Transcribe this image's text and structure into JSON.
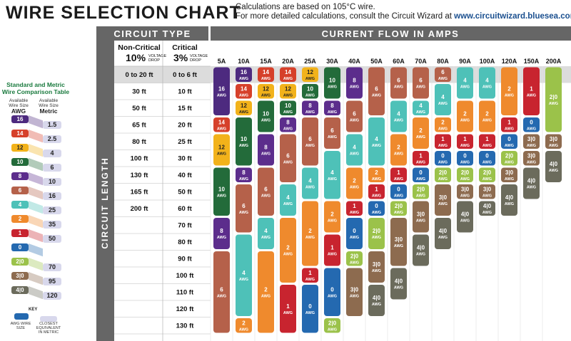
{
  "header": {
    "title": "WIRE SELECTION CHART",
    "sub1": "Calculations are based on 105°C wire.",
    "sub2_prefix": "For more detailed calculations, consult the Circuit Wizard at ",
    "sub2_url": "www.circuitwizard.bluesea.com"
  },
  "side": {
    "title1": "Standard and Metric",
    "title2": "Wire Comparison Table",
    "col1a": "Available",
    "col1b": "Wire Size",
    "col1c": "AWG",
    "col2a": "Available",
    "col2b": "Wire Size",
    "col2c": "Metric",
    "rows": [
      {
        "awg": "16",
        "metric": "1.5"
      },
      {
        "awg": "14",
        "metric": "2.5"
      },
      {
        "awg": "12",
        "metric": "4"
      },
      {
        "awg": "10",
        "metric": "6"
      },
      {
        "awg": "8",
        "metric": "10"
      },
      {
        "awg": "6",
        "metric": "16"
      },
      {
        "awg": "4",
        "metric": "25"
      },
      {
        "awg": "2",
        "metric": "35"
      },
      {
        "awg": "1",
        "metric": "50"
      },
      {
        "awg": "0",
        "metric": ""
      },
      {
        "awg": "2|0",
        "metric": "70"
      },
      {
        "awg": "3|0",
        "metric": "95"
      },
      {
        "awg": "4|0",
        "metric": "120"
      }
    ],
    "key_title": "KEY",
    "key_awg": "AWG WIRE SIZE",
    "key_metric": "CLOSEST EQUIVALENT IN METRIC"
  },
  "colors": {
    "16": "#4d2a7f",
    "14": "#d6402a",
    "12": "#f2b21a",
    "10": "#236b3a",
    "8": "#5c2d8c",
    "6": "#b5614a",
    "4": "#4ec1b8",
    "2": "#ef8a2d",
    "1": "#c8242f",
    "0": "#2469b0",
    "2|0": "#9bc24a",
    "3|0": "#8d6b4f",
    "4|0": "#6b6b5c",
    "header_dark": "#666666",
    "shade": "#f2f2f2"
  },
  "chart_data": {
    "type": "table",
    "circuit_type_label": "CIRCUIT TYPE",
    "current_label": "CURRENT FLOW IN AMPS",
    "circuit_length_label": "CIRCUIT LENGTH",
    "noncritical_label": "Non-Critical",
    "noncritical_pct": "10%",
    "critical_label": "Critical",
    "critical_pct": "3%",
    "voltage_drop": "VOLTAGE DROP",
    "unit_label": "AWG",
    "amps": [
      "5A",
      "10A",
      "15A",
      "20A",
      "25A",
      "30A",
      "40A",
      "50A",
      "60A",
      "70A",
      "80A",
      "90A",
      "100A",
      "120A",
      "150A",
      "200A"
    ],
    "noncritical_lengths": [
      "0 to 20 ft",
      "30 ft",
      "50 ft",
      "65 ft",
      "80 ft",
      "100 ft",
      "130 ft",
      "165 ft",
      "200 ft"
    ],
    "critical_lengths": [
      "0 to 6 ft",
      "10 ft",
      "15 ft",
      "20 ft",
      "25 ft",
      "30 ft",
      "40 ft",
      "50 ft",
      "60 ft",
      "70 ft",
      "80 ft",
      "90 ft",
      "100 ft",
      "110 ft",
      "120 ft",
      "130 ft"
    ],
    "columns": [
      [
        [
          "16",
          0,
          2
        ],
        [
          "14",
          3,
          3
        ],
        [
          "12",
          4,
          5
        ],
        [
          "10",
          6,
          8
        ],
        [
          "8",
          9,
          10
        ],
        [
          "6",
          11,
          15
        ]
      ],
      [
        [
          "16",
          0,
          0
        ],
        [
          "14",
          1,
          1
        ],
        [
          "12",
          2,
          2
        ],
        [
          "10",
          3,
          5
        ],
        [
          "8",
          6,
          6
        ],
        [
          "6",
          7,
          9
        ],
        [
          "4",
          10,
          14
        ],
        [
          "2",
          15,
          15
        ]
      ],
      [
        [
          "14",
          0,
          0
        ],
        [
          "12",
          1,
          1
        ],
        [
          "10",
          2,
          3
        ],
        [
          "8",
          4,
          5
        ],
        [
          "6",
          6,
          8
        ],
        [
          "4",
          9,
          10
        ],
        [
          "2",
          11,
          15
        ]
      ],
      [
        [
          "14",
          0,
          0
        ],
        [
          "12",
          1,
          1
        ],
        [
          "10",
          2,
          2
        ],
        [
          "8",
          3,
          3
        ],
        [
          "6",
          4,
          6
        ],
        [
          "4",
          7,
          8
        ],
        [
          "2",
          9,
          12
        ],
        [
          "1",
          13,
          15
        ]
      ],
      [
        [
          "12",
          0,
          0
        ],
        [
          "10",
          1,
          1
        ],
        [
          "8",
          2,
          2
        ],
        [
          "6",
          3,
          5
        ],
        [
          "4",
          6,
          7
        ],
        [
          "2",
          8,
          11
        ],
        [
          "1",
          12,
          12
        ],
        [
          "0",
          13,
          15
        ]
      ],
      [
        [
          "10",
          0,
          1
        ],
        [
          "8",
          2,
          2
        ],
        [
          "6",
          3,
          4
        ],
        [
          "4",
          5,
          7
        ],
        [
          "2",
          8,
          9
        ],
        [
          "1",
          10,
          11
        ],
        [
          "0",
          12,
          14
        ],
        [
          "2|0",
          15,
          15
        ]
      ],
      [
        [
          "8",
          0,
          1
        ],
        [
          "6",
          2,
          3
        ],
        [
          "4",
          4,
          5
        ],
        [
          "2",
          6,
          7
        ],
        [
          "1",
          8,
          8
        ],
        [
          "0",
          9,
          10
        ],
        [
          "2|0",
          11,
          11
        ],
        [
          "3|0",
          12,
          14
        ]
      ],
      [
        [
          "6",
          0,
          2
        ],
        [
          "4",
          3,
          5
        ],
        [
          "2",
          6,
          6
        ],
        [
          "1",
          7,
          7
        ],
        [
          "0",
          8,
          8
        ],
        [
          "2|0",
          9,
          10
        ],
        [
          "3|0",
          11,
          12
        ],
        [
          "4|0",
          13,
          14
        ]
      ],
      [
        [
          "6",
          0,
          1
        ],
        [
          "4",
          2,
          3
        ],
        [
          "2",
          4,
          5
        ],
        [
          "1",
          6,
          6
        ],
        [
          "0",
          7,
          7
        ],
        [
          "2|0",
          8,
          8
        ],
        [
          "3|0",
          9,
          11
        ],
        [
          "4|0",
          12,
          13
        ]
      ],
      [
        [
          "6",
          0,
          1
        ],
        [
          "4",
          2,
          2
        ],
        [
          "2",
          3,
          4
        ],
        [
          "1",
          5,
          5
        ],
        [
          "0",
          6,
          6
        ],
        [
          "2|0",
          7,
          7
        ],
        [
          "3|0",
          8,
          9
        ],
        [
          "4|0",
          10,
          11
        ]
      ],
      [
        [
          "6",
          0,
          0
        ],
        [
          "4",
          1,
          2
        ],
        [
          "2",
          3,
          3
        ],
        [
          "1",
          4,
          4
        ],
        [
          "0",
          5,
          5
        ],
        [
          "2|0",
          6,
          6
        ],
        [
          "3|0",
          7,
          8
        ],
        [
          "4|0",
          9,
          10
        ]
      ],
      [
        [
          "4",
          0,
          1
        ],
        [
          "2",
          2,
          3
        ],
        [
          "1",
          4,
          4
        ],
        [
          "0",
          5,
          5
        ],
        [
          "2|0",
          6,
          6
        ],
        [
          "3|0",
          7,
          7
        ],
        [
          "4|0",
          8,
          9
        ]
      ],
      [
        [
          "4",
          0,
          1
        ],
        [
          "2",
          2,
          3
        ],
        [
          "1",
          4,
          4
        ],
        [
          "0",
          5,
          5
        ],
        [
          "2|0",
          6,
          6
        ],
        [
          "3|0",
          7,
          7
        ],
        [
          "4|0",
          8,
          8
        ]
      ],
      [
        [
          "2",
          0,
          2
        ],
        [
          "1",
          3,
          3
        ],
        [
          "0",
          4,
          4
        ],
        [
          "2|0",
          5,
          5
        ],
        [
          "3|0",
          6,
          6
        ],
        [
          "4|0",
          7,
          8
        ]
      ],
      [
        [
          "1",
          0,
          2
        ],
        [
          "0",
          3,
          3
        ],
        [
          "3|0",
          4,
          4
        ],
        [
          "3|0",
          5,
          5
        ],
        [
          "4|0",
          6,
          7
        ]
      ],
      [
        [
          "2|0",
          0,
          3
        ],
        [
          "3|0",
          4,
          4
        ],
        [
          "4|0",
          5,
          6
        ]
      ]
    ]
  }
}
